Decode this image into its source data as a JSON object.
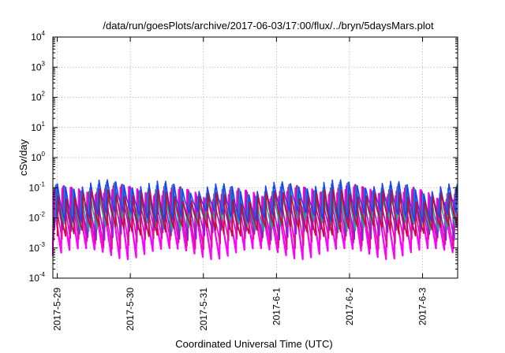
{
  "chart_data": {
    "type": "line",
    "title": "/data/run/goesPlots/archive/2017-06-03/17:00/flux/../bryn/5daysMars.plot",
    "xlabel": "Coordinated Universal Time (UTC)",
    "ylabel": "cSv/day",
    "yscale": "log",
    "ylim": [
      0.0001,
      10000
    ],
    "xlim_days": [
      -0.06,
      5.48
    ],
    "grid": true,
    "y_ticks": [
      {
        "base": "10",
        "exp": "-4",
        "value": 0.0001
      },
      {
        "base": "10",
        "exp": "-3",
        "value": 0.001
      },
      {
        "base": "10",
        "exp": "-2",
        "value": 0.01
      },
      {
        "base": "10",
        "exp": "-1",
        "value": 0.1
      },
      {
        "base": "10",
        "exp": "0",
        "value": 1
      },
      {
        "base": "10",
        "exp": "1",
        "value": 10
      },
      {
        "base": "10",
        "exp": "2",
        "value": 100
      },
      {
        "base": "10",
        "exp": "3",
        "value": 1000
      },
      {
        "base": "10",
        "exp": "4",
        "value": 10000
      }
    ],
    "x_ticks": [
      {
        "label": "2017-5-29",
        "day": 0
      },
      {
        "label": "2017-5-30",
        "day": 1
      },
      {
        "label": "2017-5-31",
        "day": 2
      },
      {
        "label": "2017-6-1",
        "day": 3
      },
      {
        "label": "2017-6-2",
        "day": 4
      },
      {
        "label": "2017-6-3",
        "day": 5
      }
    ],
    "period_days": 0.114,
    "series": [
      {
        "color": "#ff00ff",
        "peak": 0.07,
        "trough": 0.0007
      },
      {
        "color": "#e0109a",
        "peak": 0.08,
        "trough": 0.0015
      },
      {
        "color": "#8b1fcf",
        "peak": 0.09,
        "trough": 0.003
      },
      {
        "color": "#10a8a0",
        "peak": 0.1,
        "trough": 0.006
      },
      {
        "color": "#1f3fff",
        "peak": 0.12,
        "trough": 0.012
      },
      {
        "color": "#c01030",
        "peak": 0.06,
        "trough": 0.004
      }
    ]
  }
}
